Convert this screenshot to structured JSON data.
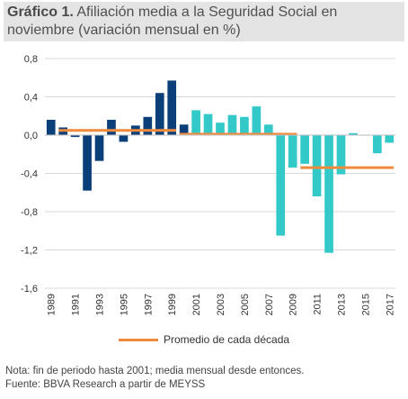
{
  "title": {
    "lead": "Gráfico 1.",
    "rest": "Afiliación media a la Seguridad Social en noviembre (variación mensual en %)"
  },
  "chart_data": {
    "type": "bar",
    "categories": [
      "1989",
      "1990",
      "1991",
      "1992",
      "1993",
      "1994",
      "1995",
      "1996",
      "1997",
      "1998",
      "1999",
      "2000",
      "2001",
      "2002",
      "2003",
      "2004",
      "2005",
      "2006",
      "2007",
      "2008",
      "2009",
      "2010",
      "2011",
      "2012",
      "2013",
      "2014",
      "2015",
      "2016",
      "2017"
    ],
    "x_tick_labels": [
      "1989",
      "1991",
      "1993",
      "1995",
      "1997",
      "1999",
      "2001",
      "2003",
      "2005",
      "2007",
      "2009",
      "2011",
      "2013",
      "2015",
      "2017"
    ],
    "values": [
      0.16,
      0.08,
      -0.02,
      -0.58,
      -0.27,
      0.16,
      -0.07,
      0.1,
      0.19,
      0.44,
      0.57,
      0.11,
      0.26,
      0.22,
      0.13,
      0.21,
      0.19,
      0.3,
      0.11,
      -1.05,
      -0.34,
      -0.3,
      -0.64,
      -1.23,
      -0.41,
      0.02,
      0.0,
      -0.19,
      -0.08
    ],
    "bar_colors": [
      "#0b3f7a",
      "#0b3f7a",
      "#0b3f7a",
      "#0b3f7a",
      "#0b3f7a",
      "#0b3f7a",
      "#0b3f7a",
      "#0b3f7a",
      "#0b3f7a",
      "#0b3f7a",
      "#0b3f7a",
      "#0b3f7a",
      "#33c9c9",
      "#33c9c9",
      "#33c9c9",
      "#33c9c9",
      "#33c9c9",
      "#33c9c9",
      "#33c9c9",
      "#33c9c9",
      "#33c9c9",
      "#33c9c9",
      "#33c9c9",
      "#33c9c9",
      "#33c9c9",
      "#33c9c9",
      "#33c9c9",
      "#33c9c9",
      "#33c9c9"
    ],
    "decade_averages": [
      {
        "from": "1990",
        "to": "1999",
        "value": 0.05
      },
      {
        "from": "2000",
        "to": "2009",
        "value": 0.01
      },
      {
        "from": "2010",
        "to": "2017",
        "value": -0.34
      }
    ],
    "ylim": [
      -1.6,
      0.8
    ],
    "y_ticks": [
      "0,8",
      "0,4",
      "0,0",
      "-0,4",
      "-0,8",
      "-1,2",
      "-1,6"
    ],
    "y_tick_values": [
      0.8,
      0.4,
      0.0,
      -0.4,
      -0.8,
      -1.2,
      -1.6
    ],
    "grid": true,
    "legend": [
      {
        "name": "Promedio de cada década",
        "color": "#f08a3c"
      }
    ],
    "legend_position": "bottom",
    "colors": {
      "dark_series": "#0b3f7a",
      "light_series": "#33c9c9",
      "average_line": "#f08a3c",
      "grid": "#d9d9d9"
    }
  },
  "footnote": {
    "note": "Nota: fin de periodo hasta 2001; media mensual desde entonces.",
    "source": "Fuente: BBVA Research a partir de MEYSS"
  }
}
